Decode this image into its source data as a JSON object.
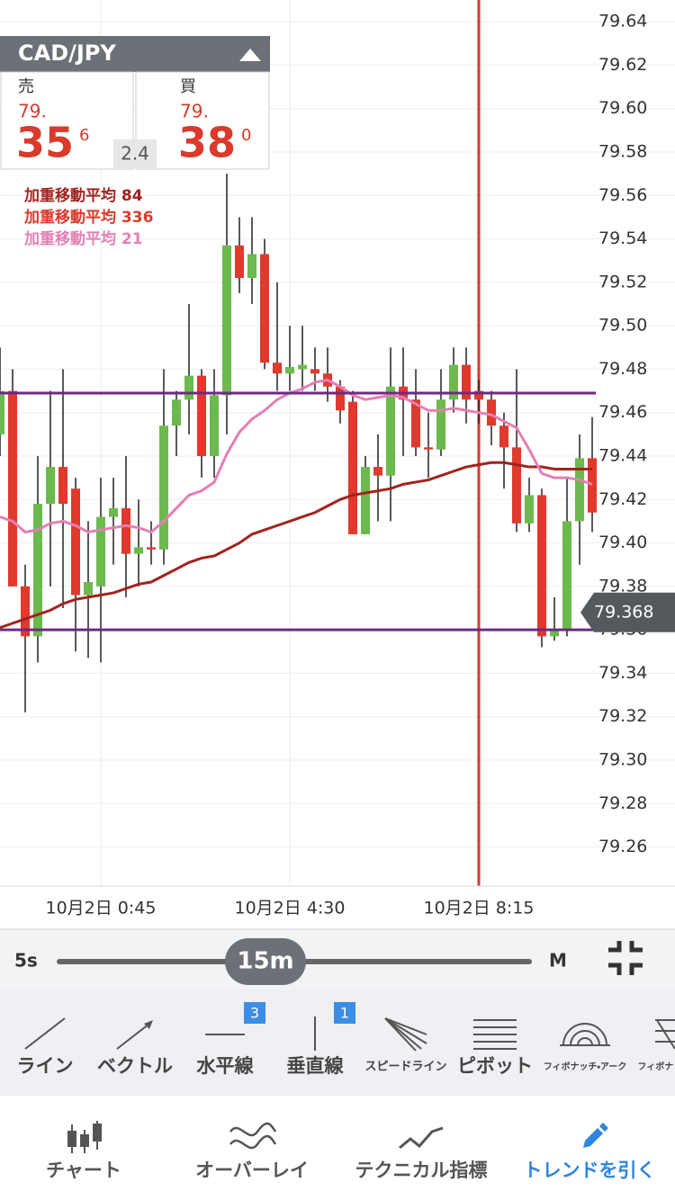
{
  "ticker": {
    "pair": "CAD/JPY",
    "sell": {
      "label": "売",
      "big_figure": "79.",
      "pips": "35",
      "fraction": "6"
    },
    "buy": {
      "label": "買",
      "big_figure": "79.",
      "pips": "38",
      "fraction": "0"
    },
    "spread": "2.4"
  },
  "chart_data": {
    "type": "candlestick",
    "categories": [
      null,
      null,
      null,
      null,
      null,
      null,
      null,
      null,
      "10月2日 0:45",
      null,
      null,
      null,
      null,
      null,
      null,
      null,
      null,
      null,
      null,
      null,
      null,
      null,
      null,
      "10月2日 4:30",
      null,
      null,
      null,
      null,
      null,
      null,
      null,
      null,
      null,
      null,
      null,
      null,
      null,
      null,
      "10月2日 8:15",
      null,
      null,
      null,
      null,
      null,
      null,
      null,
      null,
      null
    ],
    "open": [
      79.45,
      79.47,
      79.38,
      79.357,
      79.418,
      79.435,
      79.425,
      79.376,
      79.38,
      79.412,
      79.416,
      79.395,
      79.398,
      79.397,
      79.454,
      79.466,
      79.477,
      79.44,
      79.468,
      79.537,
      79.522,
      79.533,
      79.483,
      79.478,
      79.48,
      79.48,
      79.478,
      79.472,
      79.465,
      79.404,
      79.435,
      79.431,
      79.472,
      79.466,
      79.444,
      79.443,
      79.466,
      79.482,
      79.47,
      79.466,
      79.454,
      79.444,
      79.409,
      79.422,
      79.357,
      79.36,
      79.41,
      79.439
    ],
    "high": [
      79.49,
      79.48,
      79.39,
      79.44,
      79.47,
      79.48,
      79.43,
      79.41,
      79.43,
      79.43,
      79.44,
      79.42,
      79.41,
      79.48,
      79.47,
      79.51,
      79.48,
      79.48,
      79.57,
      79.55,
      79.55,
      79.54,
      79.52,
      79.5,
      79.5,
      79.49,
      79.49,
      79.475,
      79.47,
      79.44,
      79.45,
      79.49,
      79.49,
      79.48,
      79.46,
      79.48,
      79.49,
      79.49,
      79.475,
      79.47,
      79.46,
      79.48,
      79.43,
      79.425,
      79.375,
      79.43,
      79.45,
      79.458
    ],
    "low": [
      79.44,
      79.38,
      79.322,
      79.345,
      79.38,
      79.37,
      79.35,
      79.347,
      79.345,
      79.39,
      79.375,
      79.38,
      79.39,
      79.39,
      79.44,
      79.45,
      79.43,
      79.43,
      79.45,
      79.515,
      79.51,
      79.48,
      79.47,
      79.47,
      79.47,
      79.47,
      79.465,
      79.455,
      79.404,
      79.404,
      79.41,
      79.41,
      79.44,
      79.44,
      79.43,
      79.44,
      79.46,
      79.455,
      79.455,
      79.445,
      79.425,
      79.405,
      79.405,
      79.352,
      79.355,
      79.357,
      79.39,
      79.405
    ],
    "close": [
      79.47,
      79.38,
      79.357,
      79.418,
      79.435,
      79.418,
      79.376,
      79.382,
      79.412,
      79.416,
      79.395,
      79.398,
      79.397,
      79.454,
      79.466,
      79.477,
      79.44,
      79.468,
      79.537,
      79.522,
      79.533,
      79.483,
      79.478,
      79.481,
      79.482,
      79.478,
      79.472,
      79.461,
      79.404,
      79.435,
      79.431,
      79.472,
      79.466,
      79.444,
      79.443,
      79.466,
      79.482,
      79.466,
      79.466,
      79.454,
      79.444,
      79.409,
      79.422,
      79.357,
      79.36,
      79.41,
      79.439,
      79.414
    ],
    "up_color": "#6cb94e",
    "down_color": "#e0392d",
    "series": [
      {
        "name": "加重移動平均 84",
        "color": "#a1241f",
        "values": [
          79.361,
          79.363,
          79.365,
          79.367,
          79.369,
          79.372,
          79.374,
          79.375,
          79.376,
          79.377,
          79.379,
          79.381,
          79.382,
          79.385,
          79.388,
          79.391,
          79.393,
          79.394,
          79.397,
          79.4,
          79.404,
          79.406,
          79.408,
          79.41,
          79.412,
          79.414,
          79.417,
          79.42,
          79.422,
          79.423,
          79.424,
          79.425,
          79.427,
          79.428,
          79.429,
          79.431,
          79.433,
          79.435,
          79.436,
          79.437,
          79.437,
          79.436,
          79.435,
          79.435,
          79.434,
          79.434,
          79.434,
          79.434
        ]
      },
      {
        "name": "加重移動平均 336",
        "color": "#d93a2b",
        "values": [
          null,
          null,
          null,
          null,
          null,
          null,
          null,
          null,
          null,
          null,
          null,
          null,
          null,
          null,
          null,
          null,
          null,
          null,
          null,
          null,
          null,
          null,
          null,
          null,
          null,
          null,
          null,
          null,
          null,
          null,
          null,
          null,
          null,
          null,
          null,
          null,
          null,
          null,
          null,
          null,
          null,
          null,
          null,
          null,
          null,
          null,
          null,
          null
        ]
      },
      {
        "name": "加重移動平均 21",
        "color": "#e47fb4",
        "values": [
          79.412,
          79.41,
          79.405,
          79.406,
          79.409,
          79.41,
          79.408,
          79.405,
          79.406,
          79.407,
          79.408,
          79.407,
          79.405,
          79.41,
          79.416,
          79.422,
          79.424,
          79.428,
          79.441,
          79.451,
          79.457,
          79.461,
          79.466,
          79.469,
          79.471,
          79.474,
          79.475,
          79.472,
          79.468,
          79.466,
          79.467,
          79.468,
          79.467,
          79.464,
          79.461,
          79.461,
          79.462,
          79.461,
          79.46,
          79.459,
          79.456,
          79.453,
          79.443,
          79.432,
          79.43,
          79.43,
          79.429,
          79.427
        ]
      }
    ],
    "hlines": {
      "values": [
        79.469,
        79.36
      ],
      "color": "#6e2a82"
    },
    "vline": {
      "index": 38,
      "color": "#d93a2b"
    },
    "current_price": 79.368,
    "ylim": [
      79.242,
      79.65
    ],
    "yticks": [
      79.26,
      79.28,
      {
        "value": 79.3,
        "label": "79.30"
      },
      79.32,
      79.34,
      79.36,
      79.38,
      {
        "value": 79.4,
        "label": "79.40"
      },
      79.42,
      79.44,
      79.46,
      79.48,
      {
        "value": 79.5,
        "label": "79.50"
      },
      79.52,
      79.54,
      79.56,
      79.58,
      {
        "value": 79.6,
        "label": "79.60"
      },
      79.62,
      79.64
    ],
    "grid": true
  },
  "timeframe": {
    "min": "5s",
    "selected": "15m",
    "max": "M"
  },
  "tools": [
    {
      "label": "ライン"
    },
    {
      "label": "ベクトル"
    },
    {
      "label": "水平線",
      "badge": 3
    },
    {
      "label": "垂直線",
      "badge": 1
    },
    {
      "label": "スピードライン"
    },
    {
      "label": "ピボット"
    },
    {
      "label": "フィボナッチ・アーク"
    },
    {
      "label": "フィボナッチ・"
    }
  ],
  "tabs": [
    {
      "label": "チャート"
    },
    {
      "label": "オーバーレイ"
    },
    {
      "label": "テクニカル指標"
    },
    {
      "label": "トレンドを引く",
      "active": true
    }
  ]
}
